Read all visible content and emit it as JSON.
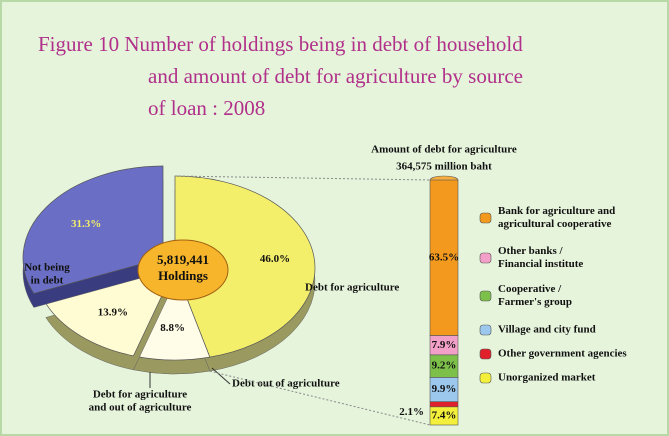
{
  "header": {
    "title_lines": [
      "Figure  10   Number of holdings being in debt of household",
      "and amount of debt  for agriculture by source",
      "of loan : 2008"
    ]
  },
  "chart_data": [
    {
      "type": "pie",
      "center_label": [
        "5,819,441",
        "Holdings"
      ],
      "categories": [
        [
          "Debt for agriculture"
        ],
        [
          "Debt out of agriculture"
        ],
        [
          "Debt for agriculture",
          "and out of agriculture"
        ],
        [
          "Not being",
          "in debt"
        ]
      ],
      "values": [
        46.0,
        8.8,
        13.9,
        31.3
      ],
      "value_labels": [
        "46.0%",
        "8.8%",
        "13.9%",
        "31.3%"
      ],
      "colors": [
        "#f4ef6a",
        "#fffde8",
        "#fffbd2",
        "#6a6ec4"
      ]
    },
    {
      "type": "stacked_bar",
      "title_lines": [
        "Amount of debt for agriculture",
        "364,575 million baht"
      ],
      "categories": [
        [
          "Bank for agriculture and",
          "agricultural cooperative"
        ],
        [
          "Other banks /",
          "Financial institute"
        ],
        [
          "Cooperative /",
          "Farmer's group"
        ],
        [
          "Village and city fund"
        ],
        [
          "Other government agencies"
        ],
        [
          "Unorganized market"
        ]
      ],
      "values": [
        63.5,
        7.9,
        9.2,
        9.9,
        2.1,
        7.4
      ],
      "value_labels": [
        "63.5%",
        "7.9%",
        "9.2%",
        "9.9%",
        "2.1%",
        "7.4%"
      ],
      "colors": [
        "#f39a1e",
        "#f3a0c8",
        "#7cc04a",
        "#9cc8ee",
        "#e0202a",
        "#f4ef3a"
      ]
    }
  ]
}
